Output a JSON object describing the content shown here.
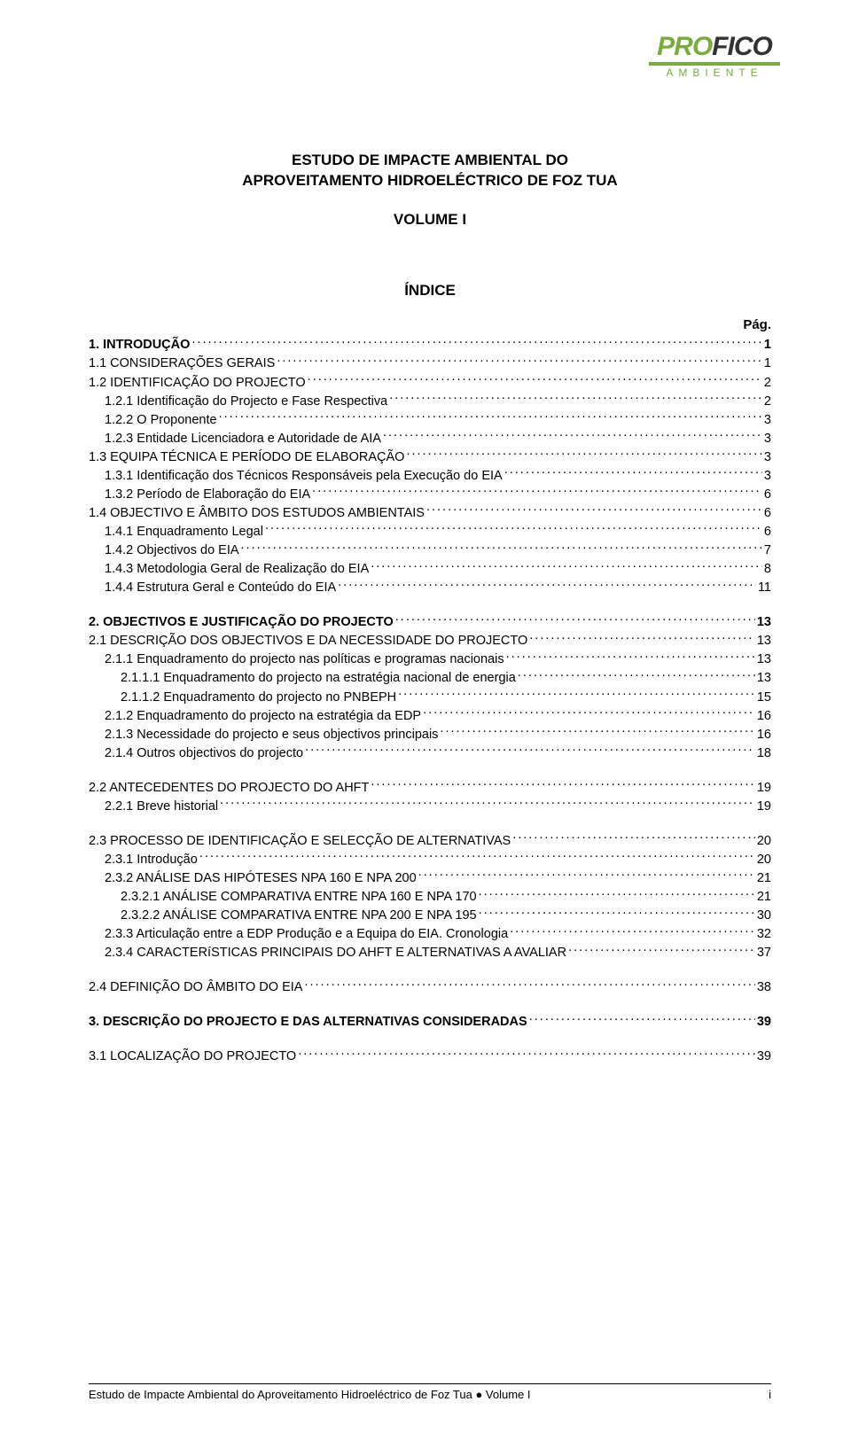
{
  "logo": {
    "text_pro": "PRO",
    "text_fico": "FICO",
    "subtitle": "AMBIENTE",
    "accent_color": "#7aab3f",
    "dark_color": "#333333"
  },
  "title": {
    "line1": "ESTUDO DE IMPACTE AMBIENTAL DO",
    "line2": "APROVEITAMENTO HIDROELÉCTRICO DE FOZ TUA",
    "volume": "VOLUME I",
    "index_label": "ÍNDICE",
    "page_label": "Pág."
  },
  "toc": [
    {
      "label": "1. INTRODUÇÃO",
      "page": "1",
      "bold": true,
      "indent": 0,
      "gap": false
    },
    {
      "label": "1.1 CONSIDERAÇÕES GERAIS",
      "page": "1",
      "bold": false,
      "indent": 0,
      "gap": false
    },
    {
      "label": "1.2 IDENTIFICAÇÃO DO PROJECTO",
      "page": "2",
      "bold": false,
      "indent": 0,
      "gap": false
    },
    {
      "label": "1.2.1 Identificação do Projecto e Fase Respectiva",
      "page": "2",
      "bold": false,
      "indent": 1,
      "gap": false
    },
    {
      "label": "1.2.2 O Proponente",
      "page": "3",
      "bold": false,
      "indent": 1,
      "gap": false
    },
    {
      "label": "1.2.3 Entidade Licenciadora e Autoridade de AIA",
      "page": "3",
      "bold": false,
      "indent": 1,
      "gap": false
    },
    {
      "label": "1.3 EQUIPA TÉCNICA E PERÍODO DE ELABORAÇÃO",
      "page": "3",
      "bold": false,
      "indent": 0,
      "gap": false
    },
    {
      "label": "1.3.1 Identificação dos Técnicos Responsáveis pela Execução do EIA",
      "page": "3",
      "bold": false,
      "indent": 1,
      "gap": false
    },
    {
      "label": "1.3.2 Período de Elaboração do EIA",
      "page": "6",
      "bold": false,
      "indent": 1,
      "gap": false
    },
    {
      "label": "1.4 OBJECTIVO E ÂMBITO DOS ESTUDOS AMBIENTAIS",
      "page": "6",
      "bold": false,
      "indent": 0,
      "gap": false
    },
    {
      "label": "1.4.1 Enquadramento Legal",
      "page": "6",
      "bold": false,
      "indent": 1,
      "gap": false
    },
    {
      "label": "1.4.2 Objectivos do EIA",
      "page": "7",
      "bold": false,
      "indent": 1,
      "gap": false
    },
    {
      "label": "1.4.3 Metodologia Geral de Realização do EIA",
      "page": "8",
      "bold": false,
      "indent": 1,
      "gap": false
    },
    {
      "label": "1.4.4 Estrutura Geral e Conteúdo do EIA",
      "page": "11",
      "bold": false,
      "indent": 1,
      "gap": false
    },
    {
      "label": "2. OBJECTIVOS E JUSTIFICAÇÃO DO PROJECTO",
      "page": "13",
      "bold": true,
      "indent": 0,
      "gap": true
    },
    {
      "label": "2.1 DESCRIÇÃO DOS OBJECTIVOS E DA NECESSIDADE DO PROJECTO",
      "page": "13",
      "bold": false,
      "indent": 0,
      "gap": false
    },
    {
      "label": "2.1.1 Enquadramento do projecto nas políticas e programas nacionais",
      "page": "13",
      "bold": false,
      "indent": 1,
      "gap": false
    },
    {
      "label": "2.1.1.1 Enquadramento do projecto na estratégia nacional de energia",
      "page": "13",
      "bold": false,
      "indent": 2,
      "gap": false
    },
    {
      "label": "2.1.1.2 Enquadramento do projecto no PNBEPH",
      "page": "15",
      "bold": false,
      "indent": 2,
      "gap": false
    },
    {
      "label": "2.1.2 Enquadramento do projecto na estratégia da EDP",
      "page": "16",
      "bold": false,
      "indent": 1,
      "gap": false
    },
    {
      "label": "2.1.3 Necessidade do projecto e seus objectivos principais",
      "page": "16",
      "bold": false,
      "indent": 1,
      "gap": false
    },
    {
      "label": "2.1.4 Outros objectivos do projecto",
      "page": "18",
      "bold": false,
      "indent": 1,
      "gap": false
    },
    {
      "label": "2.2 ANTECEDENTES DO PROJECTO DO AHFT",
      "page": "19",
      "bold": false,
      "indent": 0,
      "gap": true
    },
    {
      "label": "2.2.1 Breve historial",
      "page": "19",
      "bold": false,
      "indent": 1,
      "gap": false
    },
    {
      "label": "2.3 PROCESSO DE IDENTIFICAÇÃO E SELECÇÃO DE ALTERNATIVAS",
      "page": "20",
      "bold": false,
      "indent": 0,
      "gap": true
    },
    {
      "label": "2.3.1 Introdução",
      "page": "20",
      "bold": false,
      "indent": 1,
      "gap": false
    },
    {
      "label": "2.3.2 ANÁLISE DAS HIPÓTESES NPA 160 E NPA 200",
      "page": "21",
      "bold": false,
      "indent": 1,
      "gap": false
    },
    {
      "label": "2.3.2.1 ANÁLISE COMPARATIVA ENTRE NPA 160 E NPA 170",
      "page": "21",
      "bold": false,
      "indent": 2,
      "gap": false
    },
    {
      "label": "2.3.2.2 ANÁLISE COMPARATIVA ENTRE NPA 200 E NPA 195",
      "page": "30",
      "bold": false,
      "indent": 2,
      "gap": false
    },
    {
      "label": "2.3.3 Articulação entre a EDP Produção e a Equipa do EIA. Cronologia",
      "page": "32",
      "bold": false,
      "indent": 1,
      "gap": false
    },
    {
      "label": "2.3.4 CARACTERíSTICAS PRINCIPAIS DO AHFT E ALTERNATIVAS A AVALIAR",
      "page": "37",
      "bold": false,
      "indent": 1,
      "gap": false
    },
    {
      "label": "2.4 DEFINIÇÃO DO ÂMBITO DO EIA",
      "page": "38",
      "bold": false,
      "indent": 0,
      "gap": true
    },
    {
      "label": "3. DESCRIÇÃO DO PROJECTO E DAS ALTERNATIVAS CONSIDERADAS",
      "page": "39",
      "bold": true,
      "indent": 0,
      "gap": true
    },
    {
      "label": "3.1 LOCALIZAÇÃO DO PROJECTO",
      "page": "39",
      "bold": false,
      "indent": 0,
      "gap": true
    }
  ],
  "footer": {
    "left": "Estudo de Impacte Ambiental do Aproveitamento Hidroeléctrico de Foz Tua ● Volume I",
    "right": "i"
  },
  "colors": {
    "text": "#000000",
    "background": "#ffffff"
  }
}
